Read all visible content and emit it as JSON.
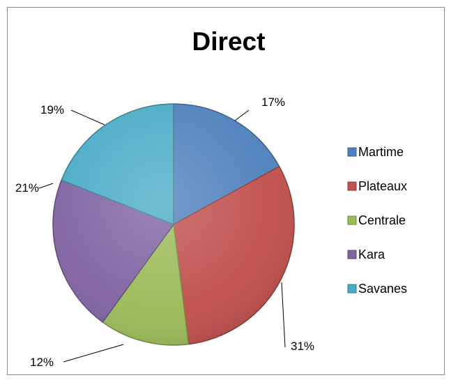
{
  "chart_data": {
    "type": "pie",
    "title": "Direct",
    "categories": [
      "Martime",
      "Plateaux",
      "Centrale",
      "Kara",
      "Savanes"
    ],
    "values": [
      17,
      31,
      12,
      21,
      19
    ],
    "labels": [
      "17%",
      "31%",
      "12%",
      "21%",
      "19%"
    ],
    "colors": [
      "#4f81bd",
      "#c0504d",
      "#9bbb59",
      "#8064a2",
      "#4bacc6"
    ],
    "legend_position": "right"
  }
}
